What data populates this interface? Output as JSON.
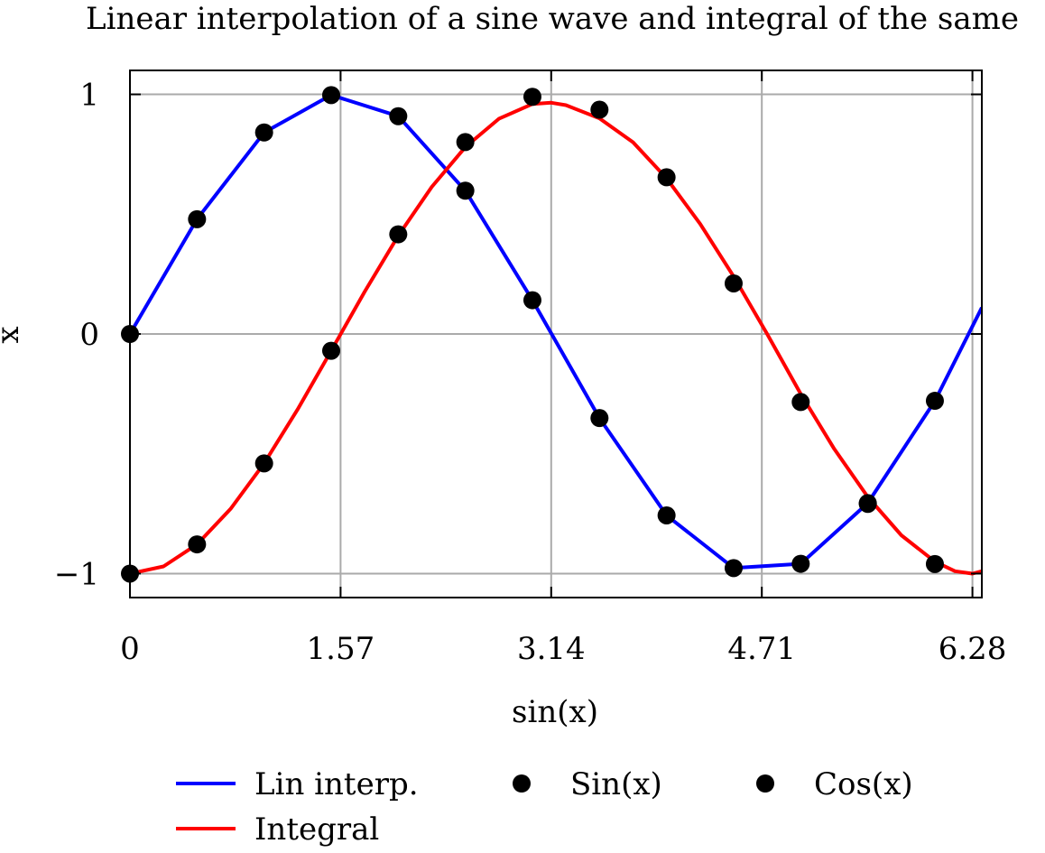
{
  "chart_data": {
    "type": "line",
    "title": "Linear interpolation of a sine wave and integral of the same",
    "xlabel": "sin(x)",
    "ylabel": "x",
    "xlim": [
      0,
      6.35
    ],
    "ylim": [
      -1.1,
      1.1
    ],
    "grid": true,
    "x_ticks": [
      0,
      1.57,
      3.14,
      4.71,
      6.28
    ],
    "x_tick_labels": [
      "0",
      "1.57",
      "3.14",
      "4.71",
      "6.28"
    ],
    "y_ticks": [
      -1,
      0,
      1
    ],
    "y_tick_labels": [
      "−1",
      "0",
      "1"
    ],
    "legend_position": "bottom",
    "series": [
      {
        "name": "Lin interp.",
        "kind": "line",
        "color": "#0000ff",
        "x": [
          0,
          0.5,
          1.0,
          1.5,
          2.0,
          2.5,
          3.0,
          3.5,
          4.0,
          4.5,
          5.0,
          5.5,
          6.0,
          6.35
        ],
        "y": [
          0,
          0.479,
          0.841,
          0.997,
          0.909,
          0.598,
          0.141,
          -0.351,
          -0.757,
          -0.977,
          -0.959,
          -0.706,
          -0.279,
          0.11
        ]
      },
      {
        "name": "Integral",
        "kind": "line",
        "color": "#ff0000",
        "x": [
          0,
          0.25,
          0.5,
          0.75,
          1.0,
          1.25,
          1.5,
          1.75,
          2.0,
          2.25,
          2.5,
          2.75,
          3.0,
          3.14,
          3.25,
          3.5,
          3.75,
          4.0,
          4.25,
          4.5,
          4.75,
          5.0,
          5.25,
          5.5,
          5.75,
          6.0,
          6.15,
          6.28,
          6.35
        ],
        "y": [
          -1,
          -0.97,
          -0.878,
          -0.73,
          -0.54,
          -0.315,
          -0.07,
          0.177,
          0.41,
          0.614,
          0.78,
          0.898,
          0.96,
          0.965,
          0.955,
          0.9,
          0.8,
          0.65,
          0.46,
          0.24,
          0.0,
          -0.25,
          -0.48,
          -0.68,
          -0.84,
          -0.95,
          -0.99,
          -1.0,
          -0.99
        ]
      },
      {
        "name": "Sin(x)",
        "kind": "scatter",
        "color": "#000000",
        "x": [
          0,
          0.5,
          1.0,
          1.5,
          2.0,
          2.5,
          3.0,
          3.5,
          4.0,
          4.5,
          5.0,
          5.5,
          6.0
        ],
        "y": [
          0,
          0.479,
          0.841,
          0.997,
          0.909,
          0.598,
          0.141,
          -0.351,
          -0.757,
          -0.977,
          -0.959,
          -0.706,
          -0.279
        ]
      },
      {
        "name": "Cos(x)",
        "kind": "scatter",
        "color": "#000000",
        "x": [
          0,
          0.5,
          1.0,
          1.5,
          2.0,
          2.5,
          3.0,
          3.5,
          4.0,
          4.5,
          5.0,
          5.5,
          6.0
        ],
        "y": [
          -1,
          -0.878,
          -0.54,
          -0.07,
          0.416,
          0.801,
          0.99,
          0.936,
          0.654,
          0.211,
          -0.284,
          -0.709,
          -0.96
        ]
      }
    ]
  }
}
